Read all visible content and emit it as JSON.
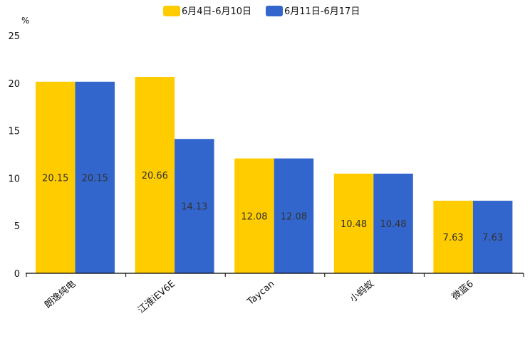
{
  "chart_data": {
    "type": "bar",
    "title": "",
    "xlabel": "",
    "ylabel": "%",
    "ylim": [
      0,
      25
    ],
    "yticks": [
      0,
      5,
      10,
      15,
      20,
      25
    ],
    "grid": false,
    "legend_position": "top-center",
    "categories": [
      "朗逸纯电",
      "江淮iEV6E",
      "Taycan",
      "小蚂蚁",
      "微蓝6"
    ],
    "series": [
      {
        "name": "6月4日-6月10日",
        "color": "#FFCC00",
        "values": [
          20.15,
          20.66,
          12.08,
          10.48,
          7.63
        ]
      },
      {
        "name": "6月11日-6月17日",
        "color": "#3366CC",
        "values": [
          20.15,
          14.13,
          12.08,
          10.48,
          7.63
        ]
      }
    ]
  }
}
